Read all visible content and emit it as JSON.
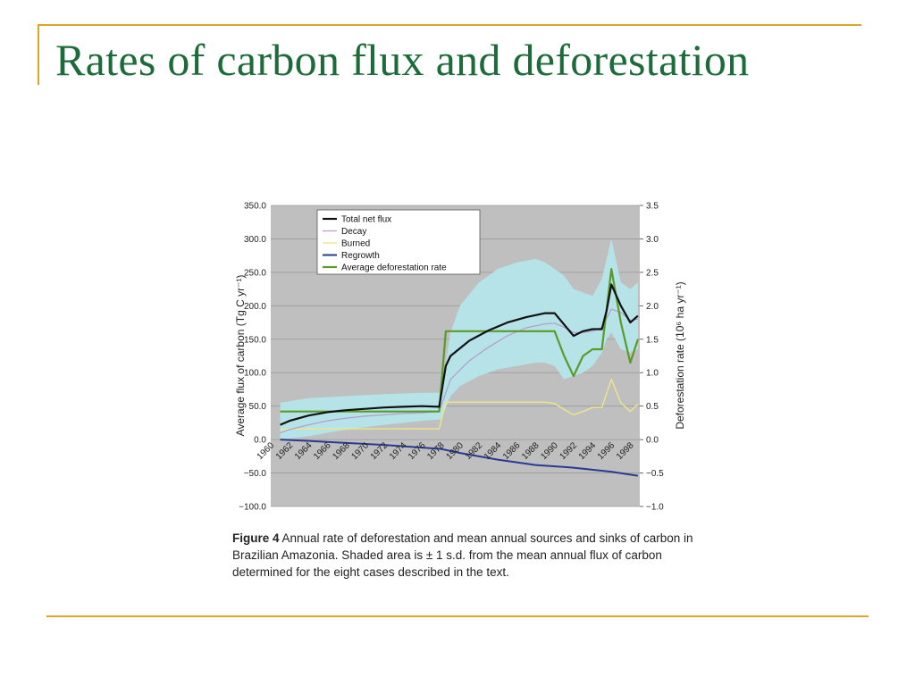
{
  "slide": {
    "title": "Rates of carbon flux and deforestation"
  },
  "figure": {
    "caption_label": "Figure 4",
    "caption_text": " Annual rate of deforestation and mean annual sources and sinks of carbon in Brazilian Amazonia. Shaded area is ± 1 s.d. from the mean annual flux of carbon determined for the eight cases described in the text."
  },
  "colors": {
    "title": "#1d6b3a",
    "accent": "#e0a526",
    "plot_bg": "#bfbfbf",
    "band": "#b5e3e8",
    "total": "#111111",
    "decay": "#b39ccc",
    "burned": "#efe68a",
    "regrowth": "#2b3a8f",
    "deforestation": "#5a9a2a"
  },
  "chart_data": {
    "type": "line",
    "xlabel": "",
    "ylabel_left": "Average flux of carbon (Tg C yr⁻¹)",
    "ylabel_right": "Deforestation rate (10⁶ ha yr⁻¹)",
    "ylim_left": [
      -100,
      350
    ],
    "ylim_right": [
      -1.0,
      3.5
    ],
    "xlim": [
      1960,
      1999
    ],
    "left_ticks": [
      "350.0",
      "300.0",
      "250.0",
      "200.0",
      "150.0",
      "100.0",
      "50.0",
      "0.0",
      "−50.0",
      "−100.0"
    ],
    "right_ticks": [
      "3.5",
      "3.0",
      "2.5",
      "2.0",
      "1.5",
      "1.0",
      "0.5",
      "0.0",
      "−0.5",
      "−1.0"
    ],
    "x_ticks": [
      "1960",
      "1962",
      "1964",
      "1966",
      "1968",
      "1970",
      "1972",
      "1974",
      "1976",
      "1978",
      "1980",
      "1982",
      "1984",
      "1986",
      "1988",
      "1990",
      "1992",
      "1994",
      "1996",
      "1998"
    ],
    "grid": true,
    "legend_position": "top-left",
    "uncertainty_band": {
      "x": [
        1961,
        1964,
        1968,
        1972,
        1976,
        1978,
        1979,
        1980,
        1982,
        1984,
        1986,
        1988,
        1989,
        1990,
        1991,
        1992,
        1993,
        1994,
        1995,
        1995.5,
        1996,
        1997,
        1998,
        1998.8
      ],
      "upper": [
        55,
        62,
        65,
        68,
        70,
        70,
        160,
        200,
        235,
        255,
        265,
        270,
        265,
        255,
        245,
        225,
        220,
        215,
        240,
        270,
        300,
        235,
        225,
        235
      ],
      "lower": [
        0,
        5,
        15,
        22,
        28,
        30,
        65,
        80,
        95,
        105,
        110,
        115,
        115,
        110,
        90,
        95,
        100,
        110,
        130,
        150,
        160,
        135,
        130,
        135
      ]
    },
    "series": [
      {
        "name": "Total net flux",
        "axis": "left",
        "x": [
          1961,
          1962,
          1964,
          1966,
          1968,
          1970,
          1972,
          1974,
          1976,
          1977.8,
          1978.5,
          1979,
          1981,
          1983,
          1985,
          1987,
          1989,
          1990,
          1991,
          1992,
          1993,
          1994,
          1995,
          1995.5,
          1996,
          1997,
          1998,
          1998.8
        ],
        "y": [
          22,
          28,
          36,
          41,
          44,
          46,
          48,
          49,
          50,
          49,
          110,
          125,
          148,
          163,
          175,
          183,
          189,
          189,
          172,
          155,
          162,
          165,
          165,
          193,
          232,
          200,
          175,
          185
        ]
      },
      {
        "name": "Decay",
        "axis": "left",
        "x": [
          1961,
          1962,
          1964,
          1966,
          1968,
          1970,
          1972,
          1974,
          1976,
          1977.8,
          1978.5,
          1979,
          1981,
          1983,
          1985,
          1987,
          1989,
          1990,
          1991,
          1992,
          1993,
          1994,
          1995,
          1996,
          1997,
          1998,
          1998.8
        ],
        "y": [
          10,
          15,
          22,
          28,
          32,
          35,
          37,
          39,
          40,
          42,
          70,
          90,
          118,
          138,
          155,
          167,
          173,
          174,
          168,
          160,
          160,
          162,
          168,
          195,
          190,
          178,
          180
        ]
      },
      {
        "name": "Burned",
        "axis": "left",
        "x": [
          1961,
          1963,
          1966,
          1970,
          1974,
          1977.8,
          1978.5,
          1981,
          1985,
          1989,
          1990,
          1991,
          1992,
          1993,
          1994,
          1995,
          1996,
          1997,
          1998,
          1998.8
        ],
        "y": [
          15,
          16,
          16,
          16,
          16,
          16,
          56,
          56,
          56,
          56,
          54,
          45,
          37,
          42,
          48,
          48,
          90,
          55,
          42,
          53
        ]
      },
      {
        "name": "Regrowth",
        "axis": "left",
        "x": [
          1961,
          1964,
          1968,
          1972,
          1976,
          1978,
          1980,
          1984,
          1988,
          1992,
          1996,
          1998.8
        ],
        "y": [
          0,
          -2,
          -5,
          -8,
          -12,
          -14,
          -20,
          -30,
          -38,
          -42,
          -48,
          -54
        ]
      },
      {
        "name": "Average deforestation rate",
        "axis": "right",
        "x": [
          1961,
          1977.8,
          1978.5,
          1990,
          1991,
          1992,
          1993,
          1994,
          1995,
          1995.5,
          1996,
          1997,
          1998,
          1998.8
        ],
        "y": [
          0.42,
          0.42,
          1.62,
          1.62,
          1.25,
          0.95,
          1.25,
          1.35,
          1.35,
          1.95,
          2.55,
          1.75,
          1.15,
          1.5
        ]
      }
    ]
  }
}
